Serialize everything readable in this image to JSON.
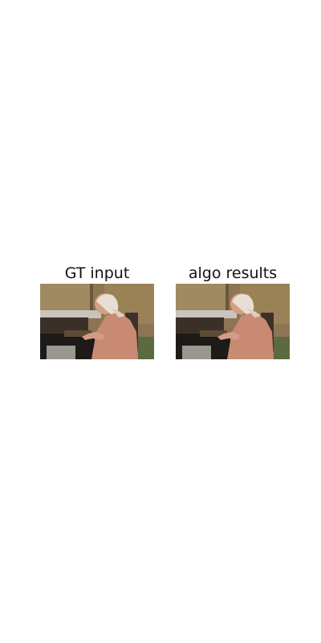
{
  "panels": [
    {
      "title": "GT input"
    },
    {
      "title": "algo results"
    }
  ],
  "colors": {
    "background": "#ffffff",
    "title_text": "#111111"
  },
  "icons": [
    "kitchen-photo"
  ]
}
